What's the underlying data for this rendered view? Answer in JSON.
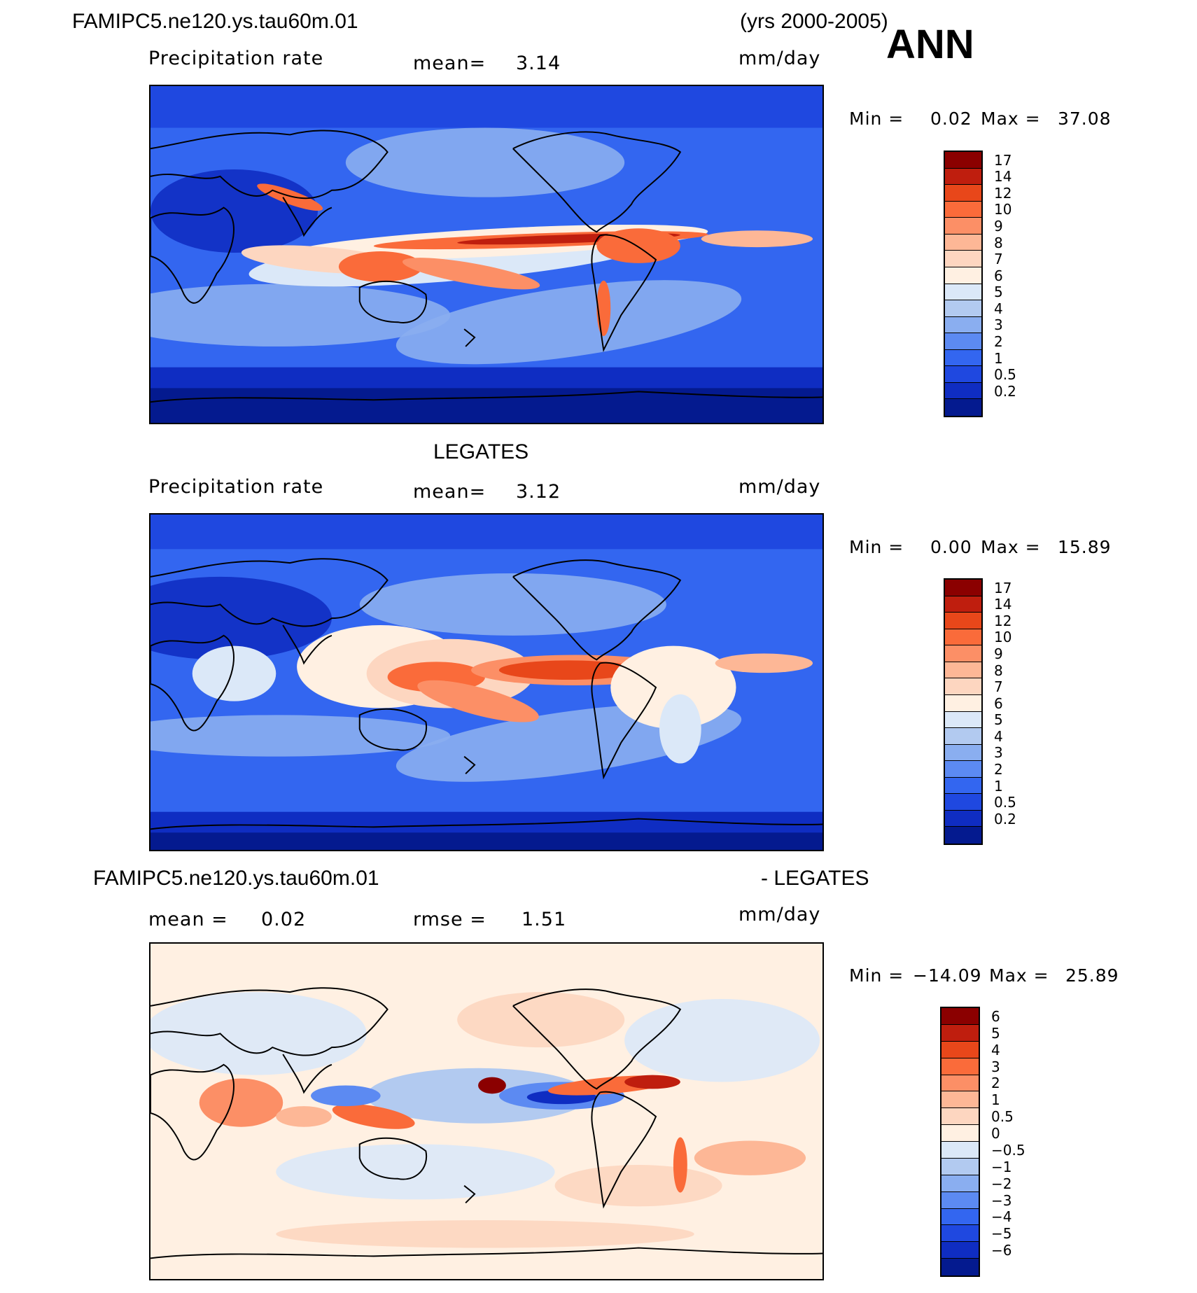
{
  "header": {
    "case_name": "FAMIPC5.ne120.ys.tau60m.01",
    "years": "(yrs 2000-2005)",
    "season": "ANN"
  },
  "chart_data": [
    {
      "type": "heatmap",
      "panel": "model",
      "variable": "Precipitation rate",
      "units": "mm/day",
      "mean_label": "mean=",
      "mean": "3.14",
      "min_label": "Min  =",
      "min": "0.02",
      "max_label": "Max  =",
      "max": "37.08",
      "colorbar_levels": [
        "17",
        "14",
        "12",
        "10",
        "9",
        "8",
        "7",
        "6",
        "5",
        "4",
        "3",
        "2",
        "1",
        "0.5",
        "0.2"
      ],
      "colorbar_colors": [
        "#8b0000",
        "#bf1e0e",
        "#e8471a",
        "#fa6b3a",
        "#fc8f66",
        "#fdb796",
        "#fdd6c0",
        "#fff0e2",
        "#dbe8f8",
        "#b2caf0",
        "#8aaef0",
        "#5c8af2",
        "#3366f0",
        "#1f48e0",
        "#0f2dc2",
        "#041a8f"
      ]
    },
    {
      "type": "heatmap",
      "panel": "observations",
      "title": "LEGATES",
      "variable": "Precipitation rate",
      "units": "mm/day",
      "mean_label": "mean=",
      "mean": "3.12",
      "min_label": "Min  =",
      "min": "0.00",
      "max_label": "Max  =",
      "max": "15.89",
      "colorbar_levels": [
        "17",
        "14",
        "12",
        "10",
        "9",
        "8",
        "7",
        "6",
        "5",
        "4",
        "3",
        "2",
        "1",
        "0.5",
        "0.2"
      ],
      "colorbar_colors": [
        "#8b0000",
        "#bf1e0e",
        "#e8471a",
        "#fa6b3a",
        "#fc8f66",
        "#fdb796",
        "#fdd6c0",
        "#fff0e2",
        "#dbe8f8",
        "#b2caf0",
        "#8aaef0",
        "#5c8af2",
        "#3366f0",
        "#1f48e0",
        "#0f2dc2",
        "#041a8f"
      ]
    },
    {
      "type": "heatmap",
      "panel": "difference",
      "title_left": "FAMIPC5.ne120.ys.tau60m.01",
      "title_right": "- LEGATES",
      "units": "mm/day",
      "mean_label": "mean =",
      "mean": "0.02",
      "rmse_label": "rmse =",
      "rmse": "1.51",
      "min_label": "Min  =",
      "min": "−14.09",
      "max_label": "Max  =",
      "max": "25.89",
      "colorbar_levels": [
        "6",
        "5",
        "4",
        "3",
        "2",
        "1",
        "0.5",
        "0",
        "−0.5",
        "−1",
        "−2",
        "−3",
        "−4",
        "−5",
        "−6"
      ],
      "colorbar_colors": [
        "#8b0000",
        "#bf1e0e",
        "#e8471a",
        "#fa6b3a",
        "#fc8f66",
        "#fdb796",
        "#fdd6c0",
        "#fff0e2",
        "#dbe8f8",
        "#b2caf0",
        "#8aaef0",
        "#5c8af2",
        "#3366f0",
        "#1f48e0",
        "#0f2dc2",
        "#041a8f"
      ]
    }
  ]
}
